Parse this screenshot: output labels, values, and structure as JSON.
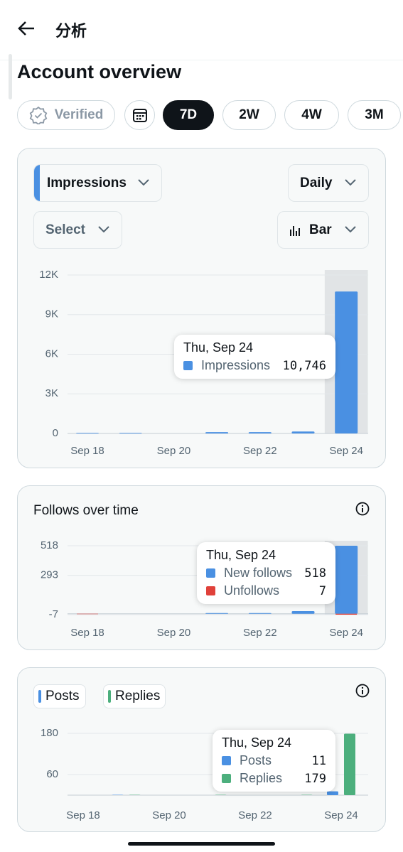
{
  "header": {
    "title": "分析"
  },
  "section_title": "Account overview",
  "filters": [
    "Verified",
    "7D",
    "2W",
    "4W",
    "3M"
  ],
  "controls": {
    "metric": "Impressions",
    "interval": "Daily",
    "compare": "Select",
    "chart_style": "Bar"
  },
  "chart_data": [
    {
      "type": "bar",
      "categories": [
        "Sep 18",
        null,
        "Sep 20",
        null,
        "Sep 22",
        null,
        "Sep 24"
      ],
      "series": [
        {
          "name": "Impressions",
          "color": "#4a90e2",
          "values": [
            50,
            50,
            0,
            100,
            100,
            150,
            10746
          ],
          "value_labels": [
            null,
            null,
            null,
            null,
            null,
            null,
            "10,746"
          ]
        }
      ],
      "ylim": [
        0,
        12000
      ],
      "yticks": [
        0,
        {
          "value": 3000,
          "label": "3K"
        },
        {
          "value": 6000,
          "label": "6K"
        },
        {
          "value": 9000,
          "label": "9K"
        },
        {
          "value": 12000,
          "label": "12K"
        }
      ],
      "grid": true,
      "tooltip_title": "Thu, Sep 24"
    },
    {
      "type": "bar",
      "title": "Follows over time",
      "categories": [
        "Sep 18",
        null,
        "Sep 20",
        null,
        "Sep 22",
        null,
        "Sep 24"
      ],
      "series": [
        {
          "name": "New follows",
          "color": "#4a90e2",
          "values": [
            0,
            0,
            0,
            5,
            5,
            20,
            518
          ]
        },
        {
          "name": "Unfollows",
          "color": "#e0413a",
          "values": [
            3,
            0,
            0,
            0,
            0,
            0,
            7
          ]
        }
      ],
      "ylim": [
        -7,
        518
      ],
      "yticks": [
        -7,
        293,
        518
      ],
      "grid": true,
      "tooltip_title": "Thu, Sep 24"
    },
    {
      "type": "grouped-bar",
      "categories": [
        "Sep 18",
        null,
        "Sep 20",
        null,
        "Sep 22",
        null,
        "Sep 24"
      ],
      "series": [
        {
          "name": "Posts",
          "color": "#4a90e2",
          "values": [
            0,
            1,
            0,
            0,
            0,
            0,
            11
          ]
        },
        {
          "name": "Replies",
          "color": "#4caf7d",
          "values": [
            0,
            1,
            0,
            1,
            0,
            1,
            179
          ]
        }
      ],
      "ylim": [
        0,
        180
      ],
      "yticks": [
        60,
        180
      ],
      "grid": true,
      "tooltip_title": "Thu, Sep 24"
    }
  ]
}
